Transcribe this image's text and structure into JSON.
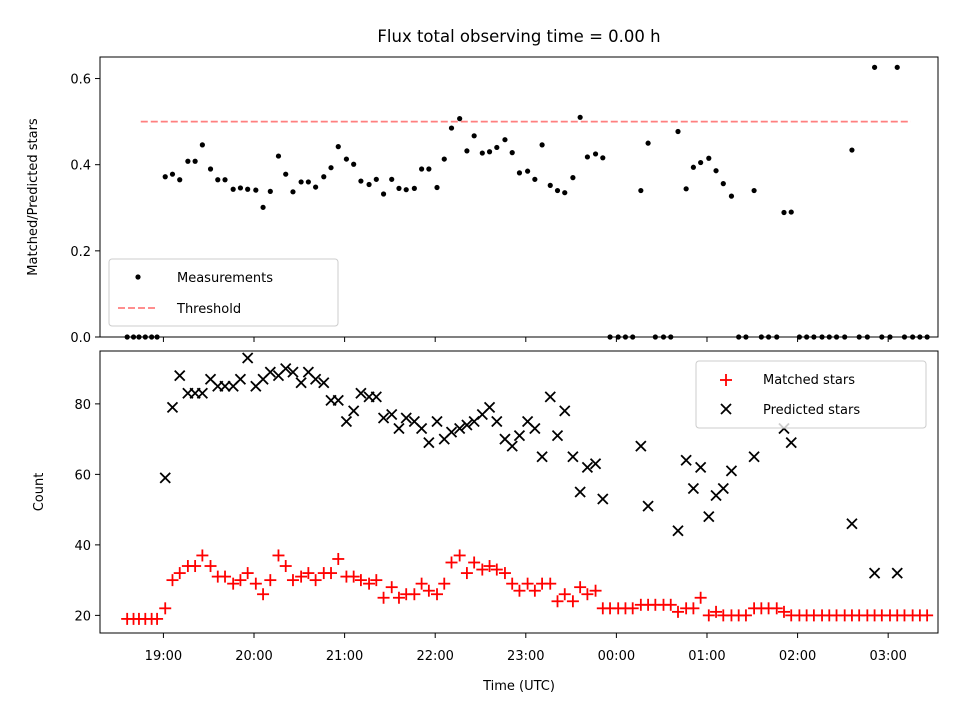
{
  "title": "Flux total observing time = 0.00 h",
  "xlabel": "Time (UTC)",
  "x_ticks": [
    "19:00",
    "20:00",
    "21:00",
    "22:00",
    "23:00",
    "00:00",
    "01:00",
    "02:00",
    "03:00"
  ],
  "colors": {
    "measure": "#000000",
    "threshold": "#ff7f7f",
    "matched": "#ff0000",
    "predicted": "#000000"
  },
  "chart_data": [
    {
      "type": "scatter",
      "ylabel": "Matched/Predicted stars",
      "ylim": [
        0,
        0.65
      ],
      "yticks": [
        "0.0",
        "0.2",
        "0.4",
        "0.6"
      ],
      "xlim_hours": [
        18.3,
        27.55
      ],
      "legend_position": "lower-left",
      "legend": [
        "Measurements",
        "Threshold"
      ],
      "threshold": {
        "value": 0.5,
        "x_range_hours": [
          18.75,
          27.25
        ]
      },
      "measurements": [
        [
          18.6,
          0
        ],
        [
          18.67,
          0
        ],
        [
          18.73,
          0
        ],
        [
          18.8,
          0
        ],
        [
          18.87,
          0
        ],
        [
          18.93,
          0
        ],
        [
          19.02,
          0.372
        ],
        [
          19.1,
          0.378
        ],
        [
          19.18,
          0.365
        ],
        [
          19.27,
          0.408
        ],
        [
          19.35,
          0.408
        ],
        [
          19.43,
          0.446
        ],
        [
          19.52,
          0.39
        ],
        [
          19.6,
          0.365
        ],
        [
          19.68,
          0.365
        ],
        [
          19.77,
          0.343
        ],
        [
          19.85,
          0.346
        ],
        [
          19.93,
          0.343
        ],
        [
          20.02,
          0.341
        ],
        [
          20.1,
          0.301
        ],
        [
          20.18,
          0.338
        ],
        [
          20.27,
          0.42
        ],
        [
          20.35,
          0.378
        ],
        [
          20.43,
          0.337
        ],
        [
          20.52,
          0.36
        ],
        [
          20.6,
          0.36
        ],
        [
          20.68,
          0.348
        ],
        [
          20.77,
          0.372
        ],
        [
          20.85,
          0.393
        ],
        [
          20.93,
          0.442
        ],
        [
          21.02,
          0.413
        ],
        [
          21.1,
          0.401
        ],
        [
          21.18,
          0.362
        ],
        [
          21.27,
          0.354
        ],
        [
          21.35,
          0.366
        ],
        [
          21.43,
          0.332
        ],
        [
          21.52,
          0.366
        ],
        [
          21.6,
          0.345
        ],
        [
          21.68,
          0.342
        ],
        [
          21.77,
          0.345
        ],
        [
          21.85,
          0.39
        ],
        [
          21.93,
          0.39
        ],
        [
          22.02,
          0.347
        ],
        [
          22.1,
          0.413
        ],
        [
          22.18,
          0.485
        ],
        [
          22.27,
          0.507
        ],
        [
          22.35,
          0.432
        ],
        [
          22.43,
          0.467
        ],
        [
          22.52,
          0.427
        ],
        [
          22.6,
          0.43
        ],
        [
          22.68,
          0.44
        ],
        [
          22.77,
          0.458
        ],
        [
          22.85,
          0.428
        ],
        [
          22.93,
          0.381
        ],
        [
          23.02,
          0.385
        ],
        [
          23.1,
          0.366
        ],
        [
          23.18,
          0.446
        ],
        [
          23.27,
          0.352
        ],
        [
          23.35,
          0.34
        ],
        [
          23.43,
          0.335
        ],
        [
          23.52,
          0.37
        ],
        [
          23.6,
          0.51
        ],
        [
          23.68,
          0.418
        ],
        [
          23.77,
          0.425
        ],
        [
          23.85,
          0.416
        ],
        [
          23.93,
          0
        ],
        [
          24.02,
          0
        ],
        [
          24.1,
          0
        ],
        [
          24.18,
          0
        ],
        [
          24.27,
          0.34
        ],
        [
          24.35,
          0.45
        ],
        [
          24.43,
          0
        ],
        [
          24.52,
          0
        ],
        [
          24.6,
          0
        ],
        [
          24.68,
          0.477
        ],
        [
          24.77,
          0.344
        ],
        [
          24.85,
          0.394
        ],
        [
          24.93,
          0.405
        ],
        [
          25.02,
          0.415
        ],
        [
          25.1,
          0.386
        ],
        [
          25.18,
          0.356
        ],
        [
          25.27,
          0.327
        ],
        [
          25.35,
          0
        ],
        [
          25.43,
          0
        ],
        [
          25.52,
          0.34
        ],
        [
          25.6,
          0
        ],
        [
          25.68,
          0
        ],
        [
          25.77,
          0
        ],
        [
          25.85,
          0.289
        ],
        [
          25.93,
          0.29
        ],
        [
          26.02,
          0
        ],
        [
          26.1,
          0
        ],
        [
          26.18,
          0
        ],
        [
          26.27,
          0
        ],
        [
          26.35,
          0
        ],
        [
          26.43,
          0
        ],
        [
          26.52,
          0
        ],
        [
          26.6,
          0.434
        ],
        [
          26.68,
          0
        ],
        [
          26.77,
          0
        ],
        [
          26.85,
          0.626
        ],
        [
          26.93,
          0
        ],
        [
          27.02,
          0
        ],
        [
          27.1,
          0.626
        ],
        [
          27.18,
          0
        ],
        [
          27.27,
          0
        ],
        [
          27.35,
          0
        ],
        [
          27.43,
          0
        ]
      ]
    },
    {
      "type": "scatter",
      "ylabel": "Count",
      "ylim": [
        15,
        95
      ],
      "yticks": [
        "20",
        "40",
        "60",
        "80"
      ],
      "xlim_hours": [
        18.3,
        27.55
      ],
      "legend_position": "upper-right",
      "legend": [
        "Matched stars",
        "Predicted stars"
      ],
      "matched": [
        [
          18.6,
          19
        ],
        [
          18.67,
          19
        ],
        [
          18.73,
          19
        ],
        [
          18.8,
          19
        ],
        [
          18.87,
          19
        ],
        [
          18.93,
          19
        ],
        [
          19.02,
          22
        ],
        [
          19.1,
          30
        ],
        [
          19.18,
          32
        ],
        [
          19.27,
          34
        ],
        [
          19.35,
          34
        ],
        [
          19.43,
          37
        ],
        [
          19.52,
          34
        ],
        [
          19.6,
          31
        ],
        [
          19.68,
          31
        ],
        [
          19.77,
          29
        ],
        [
          19.85,
          30
        ],
        [
          19.93,
          32
        ],
        [
          20.02,
          29
        ],
        [
          20.1,
          26
        ],
        [
          20.18,
          30
        ],
        [
          20.27,
          37
        ],
        [
          20.35,
          34
        ],
        [
          20.43,
          30
        ],
        [
          20.52,
          31
        ],
        [
          20.6,
          32
        ],
        [
          20.68,
          30
        ],
        [
          20.77,
          32
        ],
        [
          20.85,
          32
        ],
        [
          20.93,
          36
        ],
        [
          21.02,
          31
        ],
        [
          21.1,
          31
        ],
        [
          21.18,
          30
        ],
        [
          21.27,
          29
        ],
        [
          21.35,
          30
        ],
        [
          21.43,
          25
        ],
        [
          21.52,
          28
        ],
        [
          21.6,
          25
        ],
        [
          21.68,
          26
        ],
        [
          21.77,
          26
        ],
        [
          21.85,
          29
        ],
        [
          21.93,
          27
        ],
        [
          22.02,
          26
        ],
        [
          22.1,
          29
        ],
        [
          22.18,
          35
        ],
        [
          22.27,
          37
        ],
        [
          22.35,
          32
        ],
        [
          22.43,
          35
        ],
        [
          22.52,
          33
        ],
        [
          22.6,
          34
        ],
        [
          22.68,
          33
        ],
        [
          22.77,
          32
        ],
        [
          22.85,
          29
        ],
        [
          22.93,
          27
        ],
        [
          23.02,
          29
        ],
        [
          23.1,
          27
        ],
        [
          23.18,
          29
        ],
        [
          23.27,
          29
        ],
        [
          23.35,
          24
        ],
        [
          23.43,
          26
        ],
        [
          23.52,
          24
        ],
        [
          23.6,
          28
        ],
        [
          23.68,
          26
        ],
        [
          23.77,
          27
        ],
        [
          23.85,
          22
        ],
        [
          23.93,
          22
        ],
        [
          24.02,
          22
        ],
        [
          24.1,
          22
        ],
        [
          24.18,
          22
        ],
        [
          24.27,
          23
        ],
        [
          24.35,
          23
        ],
        [
          24.43,
          23
        ],
        [
          24.52,
          23
        ],
        [
          24.6,
          23
        ],
        [
          24.68,
          21
        ],
        [
          24.77,
          22
        ],
        [
          24.85,
          22
        ],
        [
          24.93,
          25
        ],
        [
          25.02,
          20
        ],
        [
          25.1,
          21
        ],
        [
          25.18,
          20
        ],
        [
          25.27,
          20
        ],
        [
          25.35,
          20
        ],
        [
          25.43,
          20
        ],
        [
          25.52,
          22
        ],
        [
          25.6,
          22
        ],
        [
          25.68,
          22
        ],
        [
          25.77,
          22
        ],
        [
          25.85,
          21
        ],
        [
          25.93,
          20
        ],
        [
          26.02,
          20
        ],
        [
          26.1,
          20
        ],
        [
          26.18,
          20
        ],
        [
          26.27,
          20
        ],
        [
          26.35,
          20
        ],
        [
          26.43,
          20
        ],
        [
          26.52,
          20
        ],
        [
          26.6,
          20
        ],
        [
          26.68,
          20
        ],
        [
          26.77,
          20
        ],
        [
          26.85,
          20
        ],
        [
          26.93,
          20
        ],
        [
          27.02,
          20
        ],
        [
          27.1,
          20
        ],
        [
          27.18,
          20
        ],
        [
          27.27,
          20
        ],
        [
          27.35,
          20
        ],
        [
          27.43,
          20
        ]
      ],
      "predicted": [
        [
          19.02,
          59
        ],
        [
          19.1,
          79
        ],
        [
          19.18,
          88
        ],
        [
          19.27,
          83
        ],
        [
          19.35,
          83
        ],
        [
          19.43,
          83
        ],
        [
          19.52,
          87
        ],
        [
          19.6,
          85
        ],
        [
          19.68,
          85
        ],
        [
          19.77,
          85
        ],
        [
          19.85,
          87
        ],
        [
          19.93,
          93
        ],
        [
          20.02,
          85
        ],
        [
          20.1,
          87
        ],
        [
          20.18,
          89
        ],
        [
          20.27,
          88
        ],
        [
          20.35,
          90
        ],
        [
          20.43,
          89
        ],
        [
          20.52,
          86
        ],
        [
          20.6,
          89
        ],
        [
          20.68,
          87
        ],
        [
          20.77,
          86
        ],
        [
          20.85,
          81
        ],
        [
          20.93,
          81
        ],
        [
          21.02,
          75
        ],
        [
          21.1,
          78
        ],
        [
          21.18,
          83
        ],
        [
          21.27,
          82
        ],
        [
          21.35,
          82
        ],
        [
          21.43,
          76
        ],
        [
          21.52,
          77
        ],
        [
          21.6,
          73
        ],
        [
          21.68,
          76
        ],
        [
          21.77,
          75
        ],
        [
          21.85,
          73
        ],
        [
          21.93,
          69
        ],
        [
          22.02,
          75
        ],
        [
          22.1,
          70
        ],
        [
          22.18,
          72
        ],
        [
          22.27,
          73
        ],
        [
          22.35,
          74
        ],
        [
          22.43,
          75
        ],
        [
          22.52,
          77
        ],
        [
          22.6,
          79
        ],
        [
          22.68,
          75
        ],
        [
          22.77,
          70
        ],
        [
          22.85,
          68
        ],
        [
          22.93,
          71
        ],
        [
          23.02,
          75
        ],
        [
          23.1,
          73
        ],
        [
          23.18,
          65
        ],
        [
          23.27,
          82
        ],
        [
          23.35,
          71
        ],
        [
          23.43,
          78
        ],
        [
          23.52,
          65
        ],
        [
          23.6,
          55
        ],
        [
          23.68,
          62
        ],
        [
          23.77,
          63
        ],
        [
          23.85,
          53
        ],
        [
          24.27,
          68
        ],
        [
          24.35,
          51
        ],
        [
          24.68,
          44
        ],
        [
          24.77,
          64
        ],
        [
          24.85,
          56
        ],
        [
          24.93,
          62
        ],
        [
          25.02,
          48
        ],
        [
          25.1,
          54
        ],
        [
          25.18,
          56
        ],
        [
          25.27,
          61
        ],
        [
          25.52,
          65
        ],
        [
          25.85,
          73
        ],
        [
          25.93,
          69
        ],
        [
          26.6,
          46
        ],
        [
          26.85,
          32
        ],
        [
          27.1,
          32
        ]
      ]
    }
  ]
}
